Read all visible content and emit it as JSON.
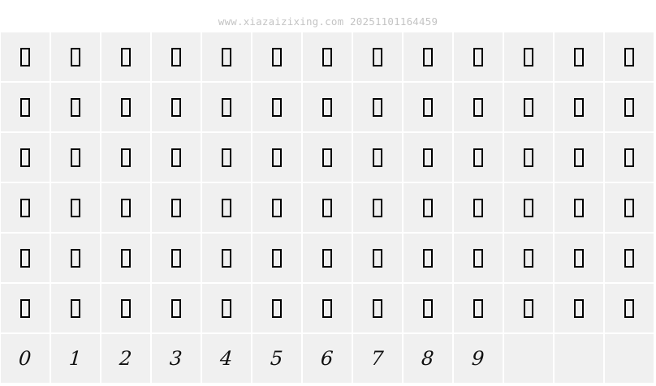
{
  "watermark": "www.xiazaizixing.com 20251101164459",
  "grid": {
    "columns": 13,
    "cell_background": "#f0f0f0",
    "glyph_rows": [
      {
        "type": "missing-glyph",
        "count": 13
      },
      {
        "type": "missing-glyph",
        "count": 13
      },
      {
        "type": "missing-glyph",
        "count": 13
      },
      {
        "type": "missing-glyph",
        "count": 13
      },
      {
        "type": "missing-glyph",
        "count": 13
      },
      {
        "type": "missing-glyph",
        "count": 13
      }
    ],
    "digits": [
      "0",
      "1",
      "2",
      "3",
      "4",
      "5",
      "6",
      "7",
      "8",
      "9"
    ],
    "empty_trailing_cells": 3
  }
}
